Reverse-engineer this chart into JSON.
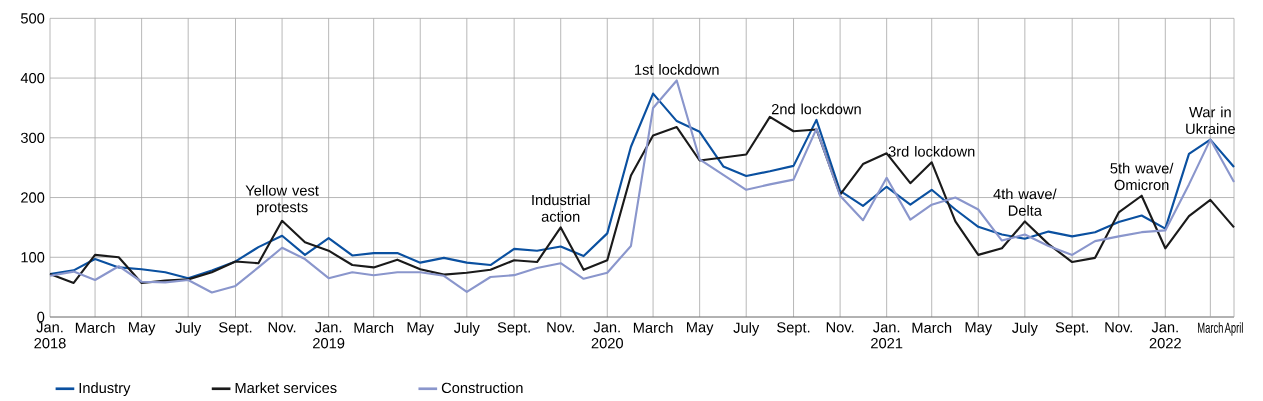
{
  "chart_data": {
    "type": "line",
    "x": [
      "2018-01",
      "2018-02",
      "2018-03",
      "2018-04",
      "2018-05",
      "2018-06",
      "2018-07",
      "2018-08",
      "2018-09",
      "2018-10",
      "2018-11",
      "2018-12",
      "2019-01",
      "2019-02",
      "2019-03",
      "2019-04",
      "2019-05",
      "2019-06",
      "2019-07",
      "2019-08",
      "2019-09",
      "2019-10",
      "2019-11",
      "2019-12",
      "2020-01",
      "2020-02",
      "2020-03",
      "2020-04",
      "2020-05",
      "2020-06",
      "2020-07",
      "2020-08",
      "2020-09",
      "2020-10",
      "2020-11",
      "2020-12",
      "2021-01",
      "2021-02",
      "2021-03",
      "2021-04",
      "2021-05",
      "2021-06",
      "2021-07",
      "2021-08",
      "2021-09",
      "2021-10",
      "2021-11",
      "2021-12",
      "2022-01",
      "2022-02",
      "2022-03",
      "2022-04"
    ],
    "series": [
      {
        "name": "Industry",
        "color": "#0a50a0",
        "values": [
          72,
          78,
          97,
          83,
          80,
          75,
          65,
          78,
          93,
          117,
          136,
          104,
          132,
          103,
          107,
          107,
          91,
          99,
          91,
          87,
          114,
          111,
          118,
          102,
          140,
          285,
          374,
          328,
          310,
          252,
          236,
          244,
          253,
          330,
          211,
          186,
          218,
          188,
          213,
          180,
          151,
          138,
          131,
          143,
          135,
          142,
          159,
          170,
          148,
          273,
          297,
          251
        ]
      },
      {
        "name": "Market services",
        "color": "#1a1a1a",
        "values": [
          72,
          57,
          104,
          100,
          57,
          61,
          63,
          75,
          93,
          90,
          161,
          125,
          111,
          87,
          83,
          96,
          80,
          71,
          74,
          79,
          95,
          92,
          150,
          79,
          95,
          237,
          304,
          318,
          262,
          267,
          272,
          335,
          311,
          314,
          205,
          256,
          274,
          224,
          259,
          160,
          104,
          115,
          160,
          122,
          92,
          99,
          175,
          203,
          115,
          169,
          196,
          150
        ]
      },
      {
        "name": "Construction",
        "color": "#8a96cc",
        "values": [
          69,
          76,
          62,
          85,
          59,
          58,
          62,
          41,
          52,
          83,
          116,
          97,
          65,
          75,
          70,
          75,
          75,
          69,
          42,
          67,
          70,
          82,
          90,
          64,
          74,
          119,
          350,
          396,
          264,
          238,
          213,
          222,
          230,
          315,
          203,
          162,
          233,
          163,
          188,
          200,
          180,
          128,
          138,
          119,
          104,
          127,
          135,
          142,
          145,
          222,
          297,
          226
        ]
      }
    ],
    "xlim": [
      "2018-01",
      "2022-04"
    ],
    "xticks": [
      {
        "value": "2018-01",
        "label": "Jan. 2018"
      },
      {
        "value": "2018-03",
        "label": "March"
      },
      {
        "value": "2018-05",
        "label": "May"
      },
      {
        "value": "2018-07",
        "label": "July"
      },
      {
        "value": "2018-09",
        "label": "Sept."
      },
      {
        "value": "2018-11",
        "label": "Nov."
      },
      {
        "value": "2019-01",
        "label": "Jan. 2019"
      },
      {
        "value": "2019-03",
        "label": "March"
      },
      {
        "value": "2019-05",
        "label": "May"
      },
      {
        "value": "2019-07",
        "label": "July"
      },
      {
        "value": "2019-09",
        "label": "Sept."
      },
      {
        "value": "2019-11",
        "label": "Nov."
      },
      {
        "value": "2020-01",
        "label": "Jan. 2020"
      },
      {
        "value": "2020-03",
        "label": "March"
      },
      {
        "value": "2020-05",
        "label": "May"
      },
      {
        "value": "2020-07",
        "label": "July"
      },
      {
        "value": "2020-09",
        "label": "Sept."
      },
      {
        "value": "2020-11",
        "label": "Nov."
      },
      {
        "value": "2021-01",
        "label": "Jan. 2021"
      },
      {
        "value": "2021-03",
        "label": "March"
      },
      {
        "value": "2021-05",
        "label": "May"
      },
      {
        "value": "2021-07",
        "label": "July"
      },
      {
        "value": "2021-09",
        "label": "Sept."
      },
      {
        "value": "2021-11",
        "label": "Nov."
      },
      {
        "value": "2022-01",
        "label": "Jan. 2022"
      },
      {
        "value": "2022-03",
        "label": "March"
      },
      {
        "value": "2022-04",
        "label": "April"
      }
    ],
    "ylim": [
      0,
      500
    ],
    "yticks": [
      0,
      100,
      200,
      300,
      400,
      500
    ],
    "grid": true,
    "legend": "bottom",
    "marker": "none",
    "line_style": "solid",
    "annotations": [
      {
        "text": "Yellow vest protests",
        "x": "2018-11",
        "y": 161
      },
      {
        "text": "Industrial action",
        "x": "2019-11",
        "y": 150
      },
      {
        "text": "1st lockdown",
        "x": "2020-04",
        "y": 396
      },
      {
        "text": "2nd lockdown",
        "x": "2020-10",
        "y": 330
      },
      {
        "text": "3rd lockdown",
        "x": "2021-03",
        "y": 259
      },
      {
        "text": "4th wave/ Delta",
        "x": "2021-07",
        "y": 160
      },
      {
        "text": "5th wave/ Omicron",
        "x": "2021-12",
        "y": 203
      },
      {
        "text": "War in Ukraine",
        "x": "2022-03",
        "y": 297
      }
    ]
  }
}
